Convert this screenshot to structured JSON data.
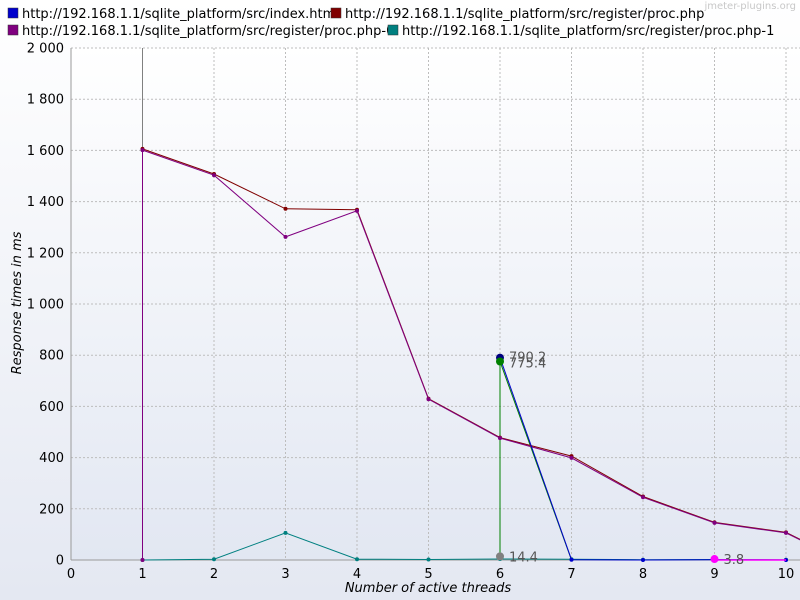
{
  "watermark": "jmeter-plugins.org",
  "chart_data": {
    "type": "line",
    "xlabel": "Number of active threads",
    "ylabel": "Response times in ms",
    "xlim": [
      0,
      10
    ],
    "ylim": [
      0,
      2000
    ],
    "x_ticks": [
      "0",
      "1",
      "2",
      "3",
      "4",
      "5",
      "6",
      "7",
      "8",
      "9",
      "10"
    ],
    "y_ticks": [
      "0",
      "200",
      "400",
      "600",
      "800",
      "1 000",
      "1 200",
      "1 400",
      "1 600",
      "1 800",
      "2 000"
    ],
    "grid": true,
    "legend_position": "top",
    "series": [
      {
        "name": "http://192.168.1.1/sqlite_platform/src/index.html",
        "color": "#0000cc",
        "points": [
          [
            6,
            790.2
          ],
          [
            7,
            1
          ],
          [
            8,
            0
          ],
          [
            9,
            1
          ],
          [
            10,
            0
          ]
        ]
      },
      {
        "name": "http://192.168.1.1/sqlite_platform/src/register/proc.php",
        "color": "#800000",
        "points": [
          [
            1,
            1606
          ],
          [
            2,
            1508
          ],
          [
            3,
            1372
          ],
          [
            4,
            1368
          ],
          [
            5,
            630
          ],
          [
            6,
            478
          ],
          [
            7,
            406
          ],
          [
            8,
            248
          ],
          [
            9,
            147
          ],
          [
            10,
            108
          ],
          [
            10.2,
            80
          ]
        ]
      },
      {
        "name": "http://192.168.1.1/sqlite_platform/src/register/proc.php-0",
        "color": "#800080",
        "points": [
          [
            1,
            0
          ],
          [
            1,
            1601
          ],
          [
            2,
            1503
          ],
          [
            3,
            1262
          ],
          [
            4,
            1364
          ],
          [
            5,
            628
          ],
          [
            6,
            476
          ],
          [
            7,
            399
          ],
          [
            8,
            245
          ],
          [
            9,
            145
          ],
          [
            10,
            106
          ],
          [
            10.2,
            78
          ]
        ]
      },
      {
        "name": "http://192.168.1.1/sqlite_platform/src/register/proc.php-1",
        "color": "#008080",
        "points": [
          [
            1,
            0
          ],
          [
            2,
            3
          ],
          [
            3,
            106
          ],
          [
            4,
            3
          ],
          [
            5,
            2
          ],
          [
            6,
            4
          ],
          [
            7,
            3
          ],
          [
            8,
            1
          ],
          [
            9,
            2
          ],
          [
            10,
            1
          ]
        ]
      }
    ],
    "extra_lines": [
      {
        "color": "#808080",
        "points": [
          [
            1,
            2000
          ],
          [
            1,
            1606
          ]
        ]
      },
      {
        "color": "#008000",
        "points": [
          [
            6,
            0
          ],
          [
            6,
            775.4
          ],
          [
            7,
            0
          ]
        ]
      }
    ],
    "annotations": [
      {
        "label": "790.2",
        "x": 6,
        "y": 790.2,
        "color": "#000080"
      },
      {
        "label": "775.4",
        "x": 6,
        "y": 775.4,
        "color": "#008000"
      },
      {
        "label": "14.4",
        "x": 6,
        "y": 14.4,
        "color": "#808080"
      },
      {
        "label": "3.8",
        "x": 9,
        "y": 3.8,
        "color": "#ff00ff"
      }
    ],
    "highlight_lines": [
      {
        "color": "#ff00ff",
        "points": [
          [
            9,
            0
          ],
          [
            10,
            0
          ]
        ]
      }
    ]
  }
}
